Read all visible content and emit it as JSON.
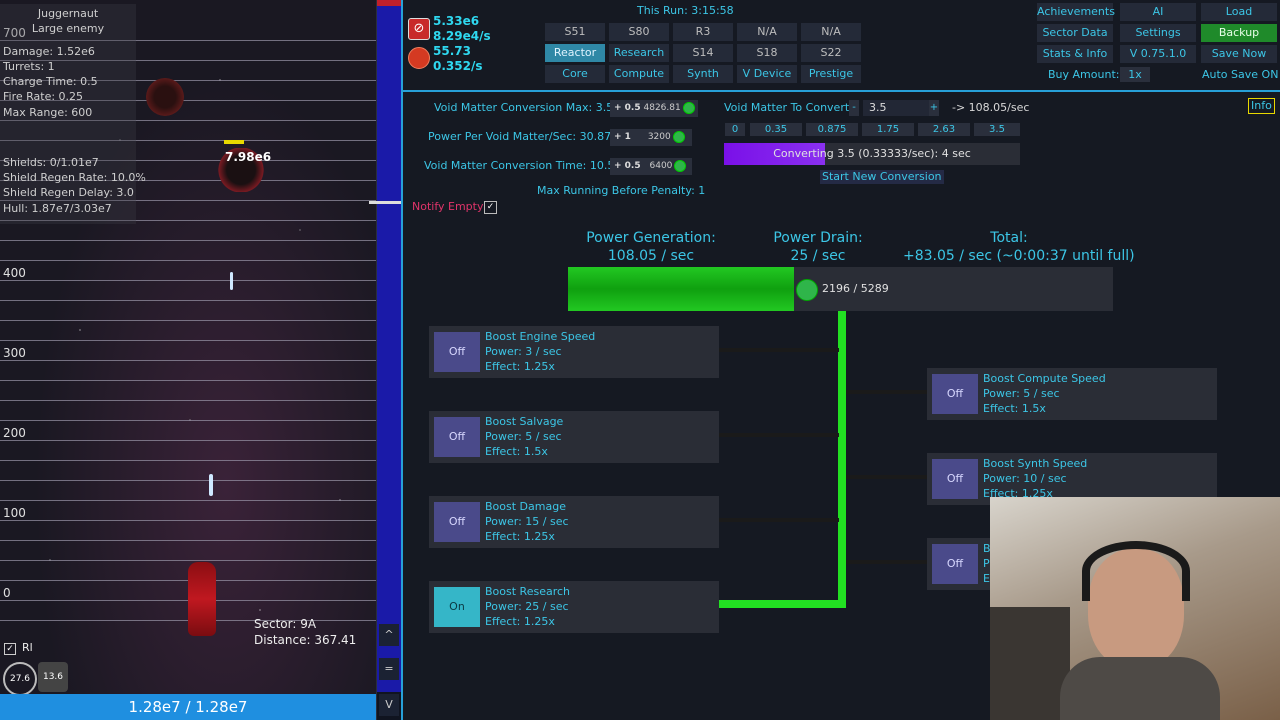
{
  "enemy": {
    "name": "Juggernaut",
    "type": "Large enemy",
    "damage": "Damage: 1.52e6",
    "turrets": "Turrets: 1",
    "charge_time": "Charge Time: 0.5",
    "fire_rate": "Fire Rate: 0.25",
    "max_range": "Max Range: 600",
    "shields": "Shields: 0/1.01e7",
    "shield_regen_rate": "Shield Regen Rate: 10.0%",
    "shield_regen_delay": "Shield Regen Delay: 3.0",
    "hull": "Hull: 1.87e7/3.03e7",
    "enemy_hp_label": "7.98e6"
  },
  "game": {
    "y_labels": [
      "700",
      "400",
      "300",
      "200",
      "100",
      "0"
    ],
    "sector": "Sector: 9A",
    "distance": "Distance: 367.41",
    "rl_label": "Rl",
    "gauge1": "27.6",
    "gauge2": "13.6",
    "hull_bar": "1.28e7 / 1.28e7",
    "scroll_up": "^",
    "scroll_mid": "=",
    "scroll_down": "V"
  },
  "resources": {
    "r1": "5.33e6",
    "r1_rate": "8.29e4/s",
    "r2": "55.73",
    "r2_rate": "0.352/s"
  },
  "run_time": "This Run: 3:15:58",
  "nav": {
    "row1": [
      "S51",
      "S80",
      "R3",
      "N/A",
      "N/A"
    ],
    "row2": [
      "Reactor",
      "Research",
      "S14",
      "S18",
      "S22"
    ],
    "row3": [
      "Core",
      "Compute",
      "Synth",
      "V Device",
      "Prestige"
    ]
  },
  "right_menu": {
    "achievements": "Achievements",
    "ai": "AI",
    "load": "Load",
    "sector_data": "Sector Data",
    "settings": "Settings",
    "backup": "Backup",
    "stats": "Stats & Info",
    "version": "V 0.75.1.0",
    "save_now": "Save Now",
    "buy_amount_label": "Buy Amount:",
    "buy_amount": "1x",
    "auto_save": "Auto Save ON"
  },
  "reactor": {
    "conv_max": "Void Matter Conversion Max: 3.5",
    "power_per": "Power Per Void Matter/Sec: 30.87",
    "conv_time": "Void Matter Conversion Time: 10.5",
    "max_running": "Max Running Before Penalty: 1",
    "upg1_inc": "+ 0.5",
    "upg1_cost": "4826.81",
    "upg2_inc": "+ 1",
    "upg2_cost": "3200",
    "upg3_inc": "+ 0.5",
    "upg3_cost": "6400",
    "vm_to_convert": "Void Matter To Convert:",
    "minus": "-",
    "vm_value": "3.5",
    "plus": "+",
    "vm_rate": "-> 108.05/sec",
    "amounts": [
      "0",
      "0.35",
      "0.875",
      "1.75",
      "2.63",
      "3.5"
    ],
    "converting": "Converting 3.5 (0.33333/sec): 4 sec",
    "converting_progress": 0.34,
    "start_new": "Start New Conversion",
    "info": "Info",
    "notify_empty": "Notify Empty"
  },
  "power": {
    "gen_label": "Power Generation:",
    "gen_value": "108.05 / sec",
    "drain_label": "Power Drain:",
    "drain_value": "25 / sec",
    "total_label": "Total:",
    "total_value": "+83.05 / sec (~0:00:37 until full)",
    "storage": "2196 / 5289",
    "storage_fraction": 0.415
  },
  "boosts_left": [
    {
      "toggle": "Off",
      "name": "Boost Engine Speed",
      "power": "Power: 3 / sec",
      "effect": "Effect: 1.25x"
    },
    {
      "toggle": "Off",
      "name": "Boost Salvage",
      "power": "Power: 5 / sec",
      "effect": "Effect: 1.5x"
    },
    {
      "toggle": "Off",
      "name": "Boost Damage",
      "power": "Power: 15 / sec",
      "effect": "Effect: 1.25x"
    },
    {
      "toggle": "On",
      "name": "Boost Research",
      "power": "Power: 25 / sec",
      "effect": "Effect: 1.25x"
    }
  ],
  "boosts_right": [
    {
      "toggle": "Off",
      "name": "Boost Compute Speed",
      "power": "Power: 5 / sec",
      "effect": "Effect: 1.5x"
    },
    {
      "toggle": "Off",
      "name": "Boost Synth Speed",
      "power": "Power: 10 / sec",
      "effect": "Effect: 1.25x"
    },
    {
      "toggle": "Off",
      "name": "B",
      "power": "P",
      "effect": "E"
    }
  ]
}
